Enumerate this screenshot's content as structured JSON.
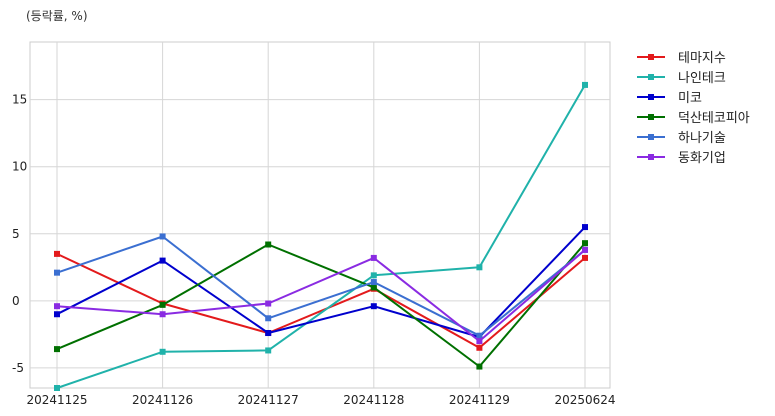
{
  "chart_data": {
    "type": "line",
    "unit_label": "(등락률, %)",
    "categories": [
      "20241125",
      "20241126",
      "20241127",
      "20241128",
      "20241129",
      "20250624"
    ],
    "ylim": [
      -6.5,
      19.3
    ],
    "yticks": [
      -5,
      0,
      5,
      10,
      15
    ],
    "grid": true,
    "legend_position": "right",
    "series": [
      {
        "name": "테마지수",
        "color": "#e31a1c",
        "values": [
          3.5,
          -0.2,
          -2.4,
          0.9,
          -3.5,
          3.2
        ]
      },
      {
        "name": "나인테크",
        "color": "#20b2aa",
        "values": [
          -6.5,
          -3.8,
          -3.7,
          1.9,
          2.5,
          16.1
        ]
      },
      {
        "name": "미코",
        "color": "#0000cd",
        "values": [
          -1.0,
          3.0,
          -2.4,
          -0.4,
          -2.7,
          5.5
        ]
      },
      {
        "name": "덕산테코피아",
        "color": "#007000",
        "values": [
          -3.6,
          -0.3,
          4.2,
          1.0,
          -4.9,
          4.3
        ]
      },
      {
        "name": "하나기술",
        "color": "#3b6fd1",
        "values": [
          2.1,
          4.8,
          -1.3,
          1.4,
          -2.6,
          3.8
        ]
      },
      {
        "name": "동화기업",
        "color": "#8a2be2",
        "values": [
          -0.4,
          -1.0,
          -0.2,
          3.2,
          -3.0,
          3.8
        ]
      }
    ]
  }
}
